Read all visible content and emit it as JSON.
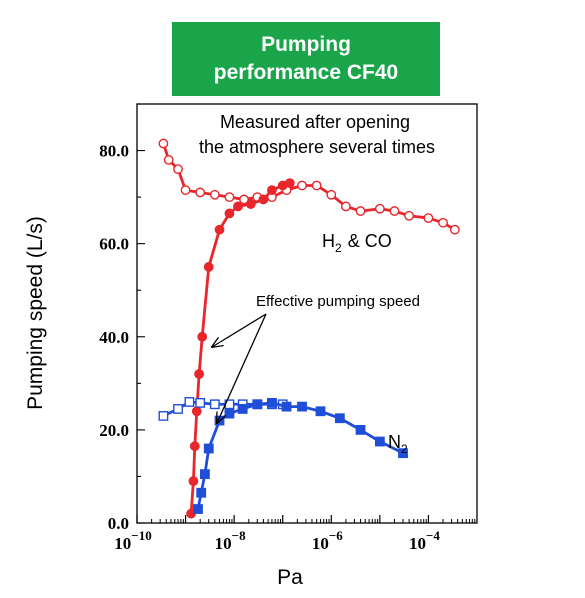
{
  "title": {
    "line1": "Pumping",
    "line2": "performance CF40",
    "background_color": "#1aa54a"
  },
  "chart_data": {
    "type": "line",
    "xlabel": "Pa",
    "ylabel": "Pumping speed (L/s)",
    "x_scale": "log",
    "xlim": [
      1e-10,
      0.001
    ],
    "ylim": [
      0,
      90
    ],
    "x_ticks": [
      {
        "value": 1e-10,
        "base": "10",
        "exp": "−10"
      },
      {
        "value": 1e-08,
        "base": "10",
        "exp": "−8"
      },
      {
        "value": 1e-06,
        "base": "10",
        "exp": "−6"
      },
      {
        "value": 0.0001,
        "base": "10",
        "exp": "−4"
      }
    ],
    "y_ticks": [
      {
        "value": 0,
        "label": "0.0"
      },
      {
        "value": 20,
        "label": "20.0"
      },
      {
        "value": 40,
        "label": "40.0"
      },
      {
        "value": 60,
        "label": "60.0"
      },
      {
        "value": 80,
        "label": "80.0"
      }
    ],
    "grid": false,
    "series": [
      {
        "group": "h2co",
        "marker": "circle-open",
        "color": "#e8262b",
        "points": [
          [
            3.5e-10,
            81.5
          ],
          [
            4.5e-10,
            78
          ],
          [
            7e-10,
            76
          ],
          [
            1e-09,
            71.5
          ],
          [
            2e-09,
            71
          ],
          [
            4e-09,
            70.5
          ],
          [
            8e-09,
            70
          ],
          [
            1.6e-08,
            69.5
          ],
          [
            3e-08,
            70
          ],
          [
            6e-08,
            70
          ],
          [
            1.2e-07,
            71.5
          ],
          [
            2.5e-07,
            72.5
          ],
          [
            5e-07,
            72.5
          ],
          [
            1e-06,
            70.5
          ],
          [
            2e-06,
            68
          ],
          [
            4e-06,
            67
          ],
          [
            1e-05,
            67.5
          ],
          [
            2e-05,
            67
          ],
          [
            4e-05,
            66
          ],
          [
            0.0001,
            65.5
          ],
          [
            0.0002,
            64.5
          ],
          [
            0.00035,
            63
          ]
        ]
      },
      {
        "group": "h2co",
        "marker": "circle-filled",
        "color": "#e8262b",
        "points": [
          [
            1.3e-09,
            2
          ],
          [
            1.45e-09,
            9
          ],
          [
            1.55e-09,
            16.5
          ],
          [
            1.7e-09,
            24
          ],
          [
            1.9e-09,
            32
          ],
          [
            2.2e-09,
            40
          ],
          [
            3e-09,
            55
          ],
          [
            5e-09,
            63
          ],
          [
            8e-09,
            66.5
          ],
          [
            1.2e-08,
            68
          ],
          [
            2.2e-08,
            68.5
          ],
          [
            4e-08,
            69.5
          ],
          [
            6e-08,
            71.5
          ],
          [
            1e-07,
            72.5
          ],
          [
            1.4e-07,
            73
          ]
        ]
      },
      {
        "group": "n2",
        "marker": "square-open",
        "color": "#1f4ed8",
        "points": [
          [
            3.5e-10,
            23
          ],
          [
            7e-10,
            24.5
          ],
          [
            1.2e-09,
            26
          ],
          [
            2e-09,
            25.8
          ],
          [
            4e-09,
            25.5
          ],
          [
            8e-09,
            25.5
          ],
          [
            1.5e-08,
            25.5
          ],
          [
            3e-08,
            25.5
          ],
          [
            6e-08,
            25.5
          ],
          [
            1e-07,
            25.5
          ]
        ]
      },
      {
        "group": "n2",
        "marker": "square-filled",
        "color": "#1f4ed8",
        "points": [
          [
            1.8e-09,
            3
          ],
          [
            2.1e-09,
            6.5
          ],
          [
            2.5e-09,
            10.5
          ],
          [
            3e-09,
            16
          ],
          [
            5e-09,
            22
          ],
          [
            8e-09,
            23.5
          ],
          [
            1.5e-08,
            24.5
          ],
          [
            3e-08,
            25.5
          ],
          [
            6e-08,
            25.8
          ],
          [
            1.2e-07,
            25
          ],
          [
            2.5e-07,
            25
          ],
          [
            6e-07,
            24
          ],
          [
            1.5e-06,
            22.5
          ],
          [
            4e-06,
            20
          ],
          [
            1e-05,
            17.5
          ],
          [
            3e-05,
            15
          ]
        ]
      }
    ],
    "annotations": {
      "measured_line1": "Measured after opening",
      "measured_line2": "the atmosphere several times",
      "h2co_h": "H",
      "h2co_sub": "2",
      "h2co_rest": "& CO",
      "n2_n": "N",
      "n2_sub": "2",
      "effective": "Effective pumping speed"
    }
  }
}
